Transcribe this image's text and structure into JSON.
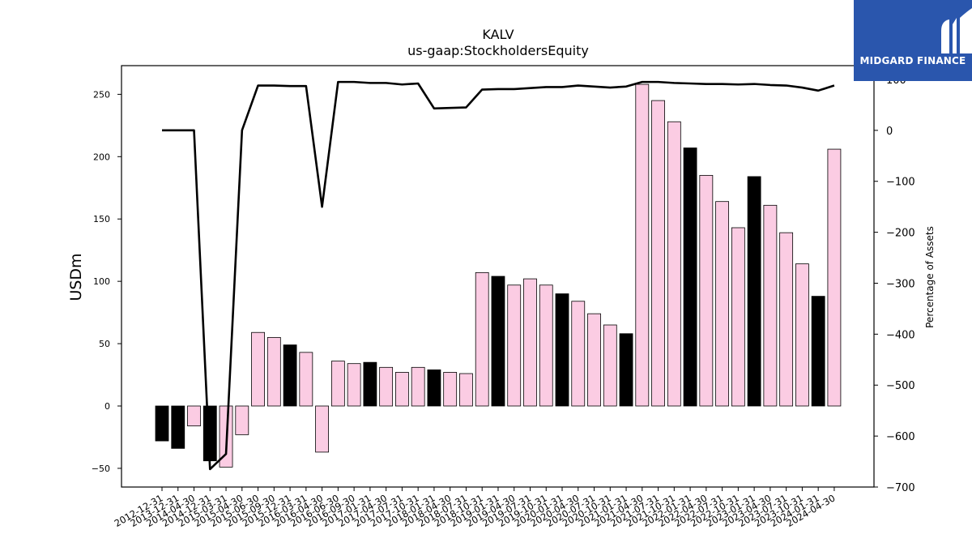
{
  "logo": {
    "text": "MIDGARD FINANCE"
  },
  "colors": {
    "positive": "#fbcce3",
    "negative": "#000000",
    "line": "#000000",
    "logo_bg": "#2a56ad"
  },
  "chart_data": {
    "type": "bar",
    "title": "KALV",
    "subtitle": "us-gaap:StockholdersEquity",
    "ylabel": "USDm",
    "y2label": "Percentage of Assets",
    "ylim": [
      -65,
      273
    ],
    "y2lim": [
      -700,
      127
    ],
    "yticks": [
      -50,
      0,
      50,
      100,
      150,
      200,
      250
    ],
    "y2ticks": [
      -700,
      -600,
      -500,
      -400,
      -300,
      -200,
      -100,
      0,
      100
    ],
    "categories": [
      "2012-12-31",
      "2013-12-31",
      "2014-04-30",
      "2014-12-31",
      "2015-03-31",
      "2015-04-30",
      "2015-06-30",
      "2015-09-30",
      "2015-12-31",
      "2016-03-31",
      "2016-04-30",
      "2016-06-30",
      "2016-09-30",
      "2017-01-31",
      "2017-04-30",
      "2017-07-31",
      "2017-10-31",
      "2018-01-31",
      "2018-04-30",
      "2018-07-31",
      "2018-10-31",
      "2019-01-31",
      "2019-04-30",
      "2019-07-31",
      "2019-10-31",
      "2020-01-31",
      "2020-04-30",
      "2020-07-31",
      "2020-10-31",
      "2021-01-31",
      "2021-04-30",
      "2021-07-31",
      "2021-10-31",
      "2022-01-31",
      "2022-04-30",
      "2022-07-31",
      "2022-10-31",
      "2023-01-31",
      "2023-04-30",
      "2023-07-31",
      "2023-10-31",
      "2024-01-31",
      "2024-04-30"
    ],
    "series": [
      {
        "type": "bar",
        "axis": "left",
        "values": [
          -28,
          -34,
          -16,
          -44,
          -49,
          -23,
          59,
          55,
          49,
          43,
          -37,
          36,
          34,
          35,
          31,
          27,
          31,
          29,
          27,
          26,
          107,
          104,
          97,
          102,
          97,
          90,
          84,
          74,
          65,
          58,
          258,
          245,
          228,
          207,
          185,
          164,
          143,
          184,
          161,
          139,
          114,
          88,
          206
        ],
        "annual": [
          true,
          true,
          false,
          true,
          false,
          false,
          false,
          false,
          true,
          false,
          false,
          false,
          false,
          true,
          false,
          false,
          false,
          true,
          false,
          false,
          false,
          true,
          false,
          false,
          false,
          true,
          false,
          false,
          false,
          true,
          false,
          false,
          false,
          true,
          false,
          false,
          false,
          true,
          false,
          false,
          false,
          true,
          false
        ]
      },
      {
        "type": "line",
        "axis": "right",
        "values": [
          0,
          0,
          0,
          -665,
          -635,
          0,
          88,
          88,
          87,
          87,
          -150,
          95,
          95,
          93,
          93,
          90,
          92,
          43,
          44,
          45,
          80,
          81,
          81,
          83,
          85,
          85,
          88,
          86,
          84,
          86,
          95,
          95,
          93,
          92,
          91,
          91,
          90,
          91,
          89,
          88,
          84,
          78,
          88
        ]
      }
    ]
  }
}
